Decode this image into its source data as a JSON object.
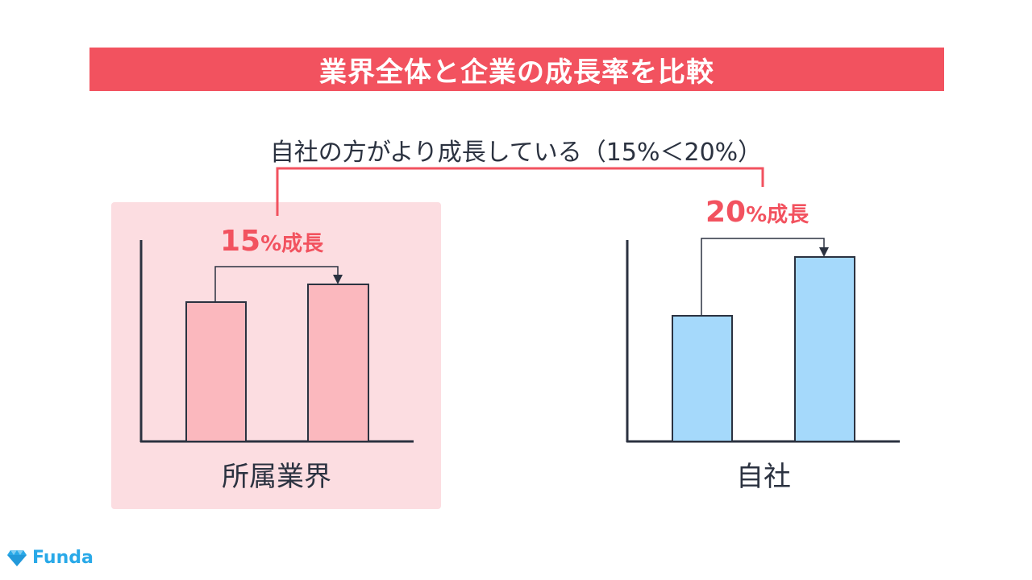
{
  "header": {
    "title": "業界全体と企業の成長率を比較"
  },
  "comparison_note": "自社の方がより成長している（15%＜20%）",
  "groups": [
    {
      "name": "所属業界",
      "growth_value": "15",
      "growth_unit": "%成長"
    },
    {
      "name": "自社",
      "growth_value": "20",
      "growth_unit": "%成長"
    }
  ],
  "colors": {
    "accent": "#f2525f",
    "industry_bar": "#fbb8be",
    "industry_panel": "#fcdde1",
    "company_bar": "#a5d9fb",
    "axis": "#2b3240",
    "logo": "#29a9e8"
  },
  "logo": {
    "text": "Funda",
    "icon": "diamond-icon"
  }
}
